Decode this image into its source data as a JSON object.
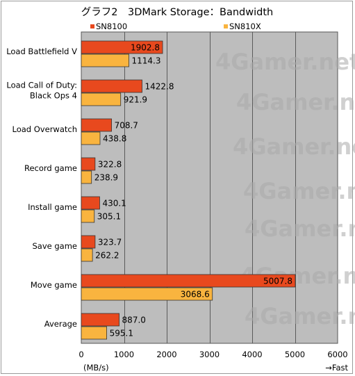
{
  "chart_data": {
    "type": "bar",
    "orientation": "horizontal",
    "title": "グラフ2　3DMark Storage：Bandwidth",
    "categories": [
      "Load Battlefield V",
      "Load Call of Duty: Black Ops 4",
      "Load Overwatch",
      "Record game",
      "Install game",
      "Save game",
      "Move game",
      "Average"
    ],
    "series": [
      {
        "name": "SN8100",
        "color": "#e8491e",
        "values": [
          1902.8,
          1422.8,
          708.7,
          322.8,
          430.1,
          323.7,
          5007.8,
          887.0
        ],
        "labels": [
          "1902.8",
          "1422.8",
          "708.7",
          "322.8",
          "430.1",
          "323.7",
          "5007.8",
          "887.0"
        ]
      },
      {
        "name": "SN810X",
        "color": "#f9b43f",
        "values": [
          1114.3,
          921.9,
          438.8,
          238.9,
          305.1,
          262.2,
          3068.6,
          595.1
        ],
        "labels": [
          "1114.3",
          "921.9",
          "438.8",
          "238.9",
          "305.1",
          "262.2",
          "3068.6",
          "595.1"
        ]
      }
    ],
    "xlim": [
      0,
      6000
    ],
    "xticks": [
      "0",
      "1000",
      "2000",
      "3000",
      "4000",
      "5000",
      "6000"
    ],
    "xlabel": "(MB/s)",
    "direction_note": "→Fast",
    "legend_position": "top",
    "grid": true,
    "plot_background": "#bdbdbd",
    "watermark": "4Gamer.net"
  }
}
